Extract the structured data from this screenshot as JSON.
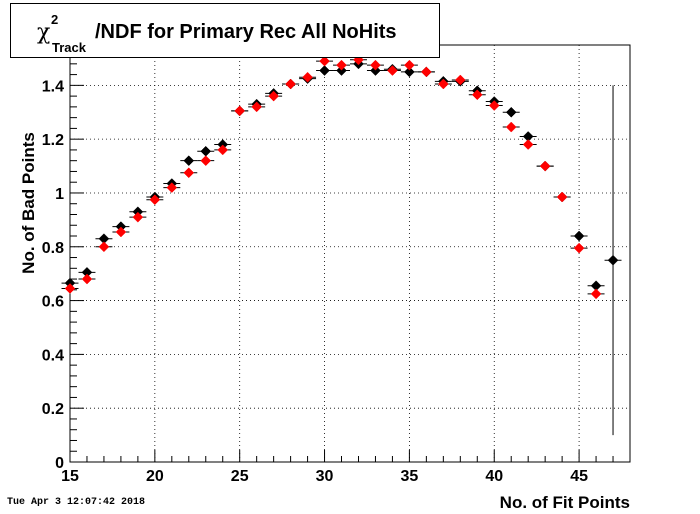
{
  "title": {
    "chi_symbol": "χ",
    "superscript": "2",
    "subscript": "Track",
    "text": "/NDF for Primary Rec All NoHits"
  },
  "timestamp": "Tue Apr  3 12:07:42 2018",
  "chart_data": {
    "type": "scatter",
    "xlabel": "No. of Fit Points",
    "ylabel": "No. of Bad Points",
    "xlim": [
      15,
      48
    ],
    "ylim": [
      0,
      1.55
    ],
    "grid": true,
    "x_ticks": [
      15,
      20,
      25,
      30,
      35,
      40,
      45
    ],
    "y_ticks": [
      0,
      0.2,
      0.4,
      0.6,
      0.8,
      1,
      1.2,
      1.4
    ],
    "series": [
      {
        "color": "#000000",
        "marker": "diamond",
        "x": [
          15,
          16,
          17,
          18,
          19,
          20,
          21,
          22,
          23,
          24,
          25,
          26,
          27,
          28,
          29,
          30,
          31,
          32,
          33,
          34,
          35,
          36,
          37,
          38,
          39,
          40,
          41,
          42,
          43,
          44,
          45,
          46,
          47
        ],
        "y": [
          0.665,
          0.705,
          0.83,
          0.875,
          0.93,
          0.985,
          1.035,
          1.12,
          1.155,
          1.18,
          1.305,
          1.33,
          1.37,
          1.405,
          1.425,
          1.455,
          1.455,
          1.48,
          1.455,
          1.46,
          1.45,
          1.45,
          1.415,
          1.415,
          1.38,
          1.34,
          1.3,
          1.21,
          1.1,
          0.985,
          0.84,
          0.655,
          0.75
        ],
        "yerr": [
          0,
          0,
          0,
          0,
          0,
          0,
          0,
          0,
          0,
          0,
          0,
          0,
          0,
          0,
          0,
          0,
          0,
          0,
          0,
          0,
          0,
          0,
          0,
          0,
          0,
          0,
          0,
          0,
          0,
          0,
          0,
          0,
          0.65
        ]
      },
      {
        "color": "#ff0000",
        "marker": "diamond",
        "x": [
          15,
          16,
          17,
          18,
          19,
          20,
          21,
          22,
          23,
          24,
          25,
          26,
          27,
          28,
          29,
          30,
          31,
          32,
          33,
          34,
          35,
          36,
          37,
          38,
          39,
          40,
          41,
          42,
          43,
          44,
          45,
          46
        ],
        "y": [
          0.645,
          0.68,
          0.8,
          0.855,
          0.91,
          0.975,
          1.02,
          1.075,
          1.12,
          1.16,
          1.305,
          1.32,
          1.36,
          1.405,
          1.43,
          1.49,
          1.475,
          1.495,
          1.475,
          1.455,
          1.475,
          1.45,
          1.405,
          1.42,
          1.365,
          1.325,
          1.245,
          1.18,
          1.1,
          0.985,
          0.795,
          0.625
        ]
      }
    ]
  }
}
